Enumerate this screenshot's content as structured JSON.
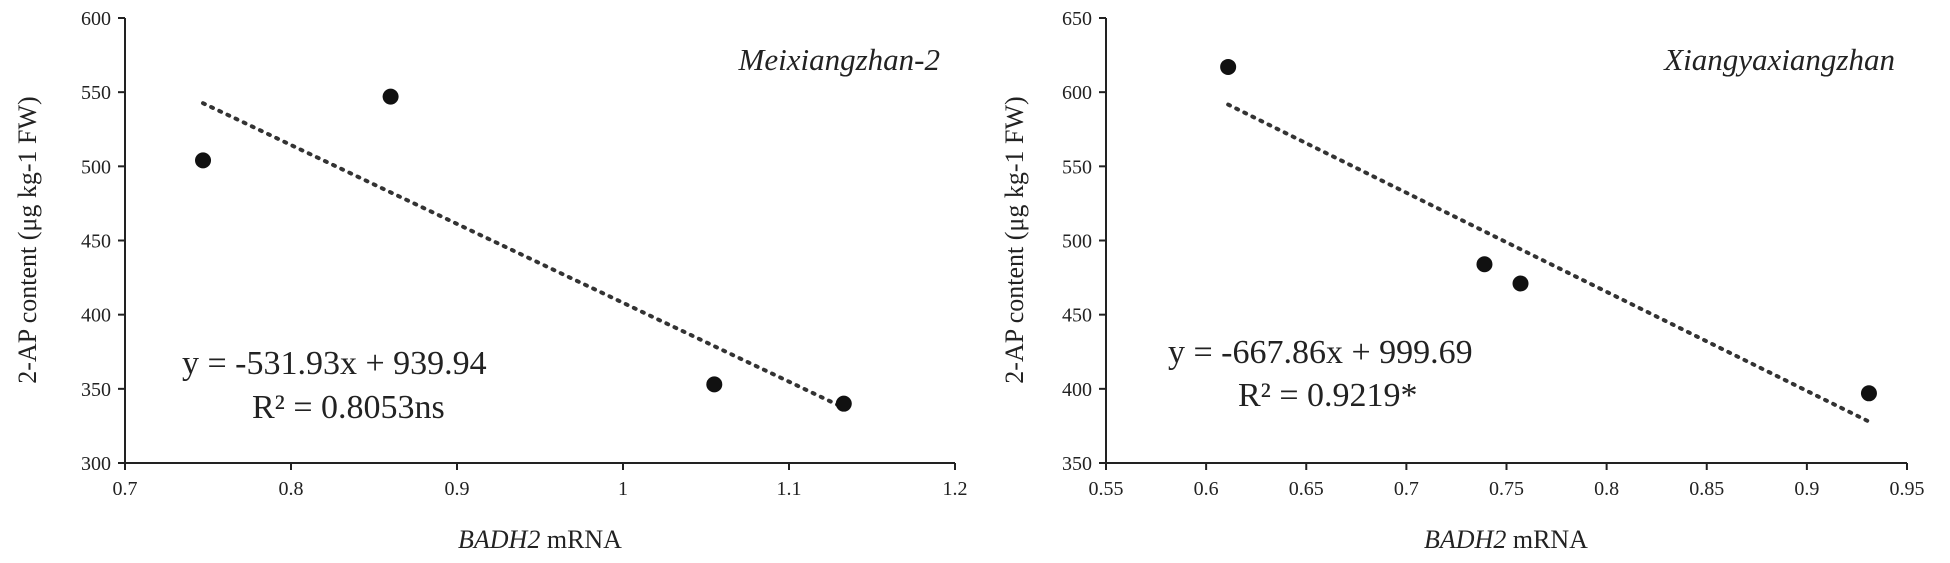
{
  "chart_data": [
    {
      "type": "scatter",
      "title": "Meixiangzhan-2",
      "xlabel_italic": "BADH2",
      "xlabel_rest": " mRNA",
      "ylabel": "2-AP content (μg kg-1 FW)",
      "xlim": [
        0.7,
        1.2
      ],
      "ylim": [
        300,
        600
      ],
      "xticks": [
        "0.7",
        "0.8",
        "0.9",
        "1",
        "1.1",
        "1.2"
      ],
      "yticks": [
        "300",
        "350",
        "400",
        "450",
        "500",
        "550",
        "600"
      ],
      "points": [
        {
          "x": 0.747,
          "y": 504
        },
        {
          "x": 0.86,
          "y": 547
        },
        {
          "x": 1.055,
          "y": 353
        },
        {
          "x": 1.133,
          "y": 340
        }
      ],
      "trendline": {
        "slope": -531.93,
        "intercept": 939.94,
        "x_start": 0.747,
        "x_end": 1.133
      },
      "equation": "y = -531.93x + 939.94",
      "r_squared": "R² = 0.8053ns"
    },
    {
      "type": "scatter",
      "title": "Xiangyaxiangzhan",
      "xlabel_italic": "BADH2",
      "xlabel_rest": " mRNA",
      "ylabel": "2-AP content (μg kg-1 FW)",
      "xlim": [
        0.55,
        0.95
      ],
      "ylim": [
        350,
        650
      ],
      "xticks": [
        "0.55",
        "0.6",
        "0.65",
        "0.7",
        "0.75",
        "0.8",
        "0.85",
        "0.9",
        "0.95"
      ],
      "yticks": [
        "350",
        "400",
        "450",
        "500",
        "550",
        "600",
        "650"
      ],
      "points": [
        {
          "x": 0.611,
          "y": 617
        },
        {
          "x": 0.739,
          "y": 484
        },
        {
          "x": 0.757,
          "y": 471
        },
        {
          "x": 0.931,
          "y": 397
        }
      ],
      "trendline": {
        "slope": -667.86,
        "intercept": 999.69,
        "x_start": 0.611,
        "x_end": 0.931
      },
      "equation": "y = -667.86x + 999.69",
      "r_squared": "R² = 0.9219*"
    }
  ]
}
